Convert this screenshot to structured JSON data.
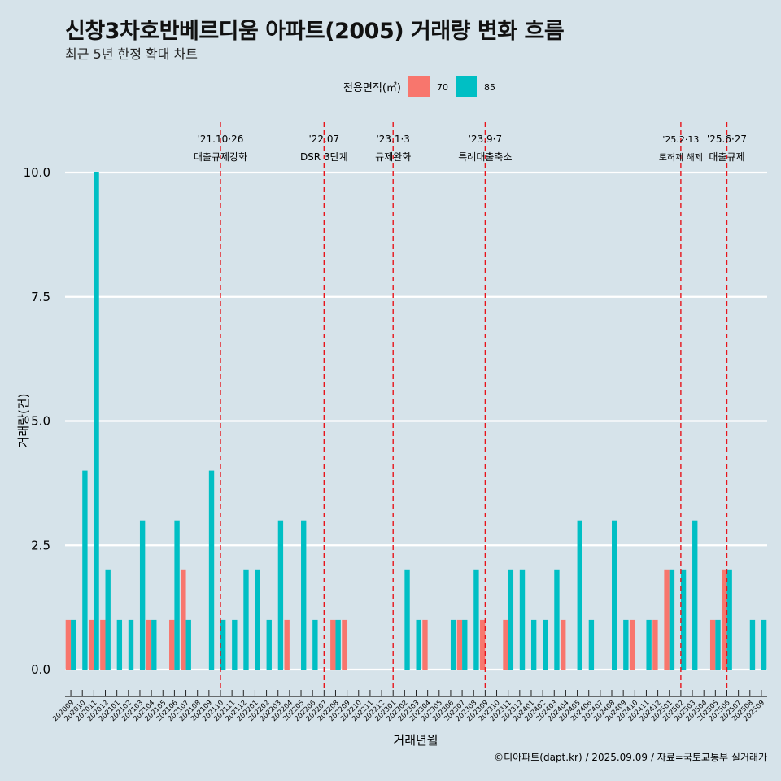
{
  "title": "신창3차호반베르디움 아파트(2005) 거래량 변화 흐름",
  "subtitle": "최근 5년 한정 확대 차트",
  "legend": {
    "title": "전용면적(㎡)",
    "items": [
      {
        "label": "70",
        "color": "#f8766d"
      },
      {
        "label": "85",
        "color": "#00bfc4"
      }
    ]
  },
  "caption": "©디아파트(dapt.kr) / 2025.09.09 / 자료=국토교통부 실거래가",
  "chart_data": {
    "type": "bar",
    "xlabel": "거래년월",
    "ylabel": "거래량(건)",
    "ylim": [
      0,
      10
    ],
    "yticks": [
      "0.0",
      "2.5",
      "5.0",
      "7.5",
      "10.0"
    ],
    "categories": [
      "202009",
      "202010",
      "202011",
      "202012",
      "202101",
      "202102",
      "202103",
      "202104",
      "202105",
      "202106",
      "202107",
      "202108",
      "202109",
      "202110",
      "202111",
      "202112",
      "202201",
      "202202",
      "202203",
      "202204",
      "202205",
      "202206",
      "202207",
      "202208",
      "202209",
      "202210",
      "202211",
      "202212",
      "202301",
      "202302",
      "202303",
      "202304",
      "202305",
      "202306",
      "202307",
      "202308",
      "202309",
      "202310",
      "202311",
      "202312",
      "202401",
      "202402",
      "202403",
      "202404",
      "202405",
      "202406",
      "202407",
      "202408",
      "202409",
      "202410",
      "202411",
      "202412",
      "202501",
      "202502",
      "202503",
      "202504",
      "202505",
      "202506",
      "202507",
      "202508",
      "202509"
    ],
    "series": [
      {
        "name": "70",
        "color": "#f8766d",
        "values": [
          1,
          0,
          1,
          1,
          0,
          0,
          0,
          1,
          0,
          1,
          2,
          0,
          0,
          0,
          0,
          0,
          0,
          0,
          0,
          1,
          0,
          0,
          0,
          1,
          1,
          0,
          0,
          0,
          0,
          0,
          0,
          1,
          0,
          0,
          1,
          0,
          1,
          0,
          1,
          0,
          0,
          0,
          0,
          1,
          0,
          0,
          0,
          0,
          0,
          1,
          0,
          1,
          2,
          0,
          0,
          0,
          1,
          2,
          0,
          0,
          0
        ]
      },
      {
        "name": "85",
        "color": "#00bfc4",
        "values": [
          1,
          4,
          10,
          2,
          1,
          1,
          3,
          1,
          0,
          3,
          1,
          0,
          4,
          1,
          1,
          2,
          2,
          1,
          3,
          0,
          3,
          1,
          0,
          1,
          0,
          0,
          0,
          0,
          0,
          2,
          1,
          0,
          0,
          1,
          1,
          2,
          0,
          0,
          2,
          2,
          1,
          1,
          2,
          0,
          3,
          1,
          0,
          3,
          1,
          0,
          1,
          0,
          2,
          2,
          3,
          0,
          1,
          2,
          0,
          1,
          1
        ]
      }
    ],
    "events": [
      {
        "date": "'21.10·26",
        "label": "대출규제강화",
        "index": 13
      },
      {
        "date": "'22.07",
        "label": "DSR 3단계",
        "index": 22
      },
      {
        "date": "'23.1·3",
        "label": "규제완화",
        "index": 28
      },
      {
        "date": "'23.9·7",
        "label": "특례대출축소",
        "index": 36
      },
      {
        "date": "'25.2·13",
        "label": "토허제 해제",
        "index": 53
      },
      {
        "date": "'25.6·27",
        "label": "대출규제",
        "index": 57
      }
    ]
  }
}
